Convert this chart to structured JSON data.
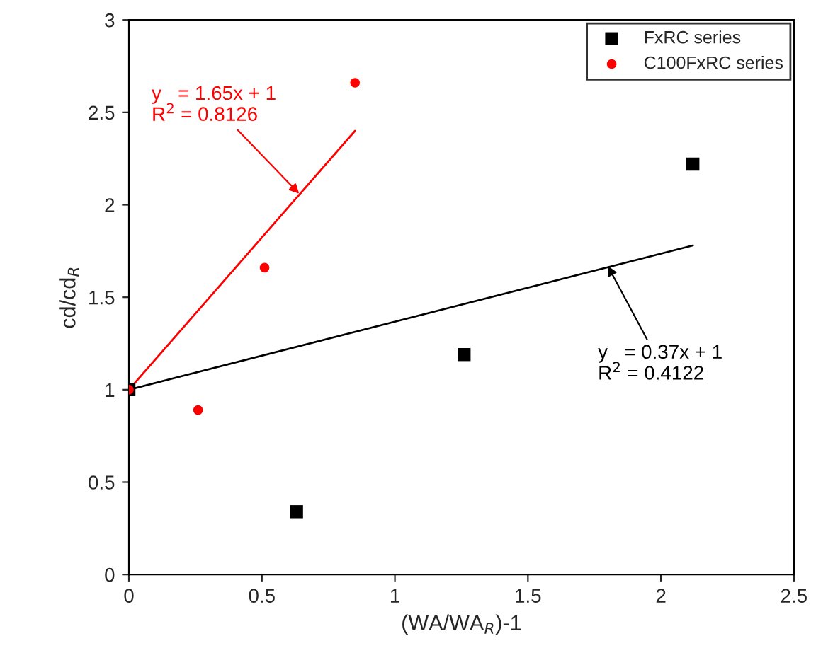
{
  "chart_data": {
    "type": "scatter",
    "xlabel": "(WA/WA$_{R}$)-1",
    "ylabel": "cd/cd$_{R}$",
    "xlim": [
      0,
      2.5
    ],
    "xticks": [
      0,
      0.5,
      1,
      1.5,
      2,
      2.5
    ],
    "ylim": [
      0,
      3
    ],
    "yticks": [
      0,
      0.5,
      1,
      1.5,
      2,
      2.5,
      3
    ],
    "grid": false,
    "legend": "top right",
    "series": [
      {
        "name": "FxRC series",
        "color": "#000000",
        "marker": "square",
        "x": [
          0,
          0.63,
          1.26,
          2.12
        ],
        "values": [
          1,
          0.34,
          1.19,
          2.22
        ]
      },
      {
        "name": "C100FxRC series",
        "color": "#ff0000",
        "marker": "circle",
        "x": [
          0,
          0.26,
          0.51,
          0.85
        ],
        "values": [
          1,
          0.89,
          1.66,
          2.66
        ]
      },
      {
        "type": "line",
        "color": "#ff0000",
        "x": [
          0,
          0.85
        ],
        "values": [
          1,
          2.4
        ]
      },
      {
        "type": "line",
        "color": "#000000",
        "x": [
          0,
          2.12
        ],
        "values": [
          1,
          1.78
        ]
      }
    ],
    "annotations": [
      {
        "text": "y   = 1.65x + 1\nR$^{2}$ = 0.8126",
        "x": 0.64,
        "y": 2.06
      },
      {
        "text": "y   = 0.37x + 1\nR$^{2}$ = 0.4122",
        "x": 1.8,
        "y": 1.67
      }
    ]
  }
}
